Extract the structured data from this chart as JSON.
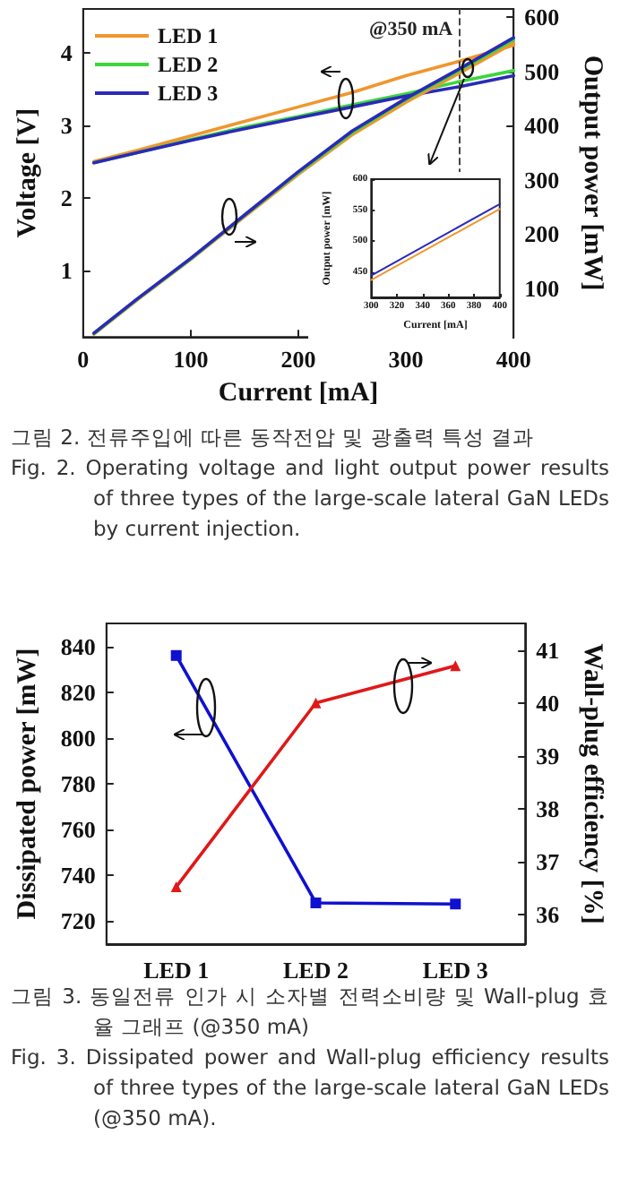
{
  "chart_data": [
    {
      "type": "line",
      "xlabel": "Current [mA]",
      "ylabel": "Voltage [V]",
      "y2label": "Output power [mW]",
      "x": [
        10,
        50,
        100,
        150,
        200,
        250,
        300,
        350,
        400
      ],
      "xlim": [
        0,
        400
      ],
      "xticks": [
        0,
        100,
        200,
        300,
        400
      ],
      "ylim": [
        0.08,
        4.6
      ],
      "yticks": [
        1,
        2,
        3,
        4
      ],
      "y2lim": [
        10,
        615
      ],
      "y2ticks": [
        100,
        200,
        300,
        400,
        500,
        600
      ],
      "grid": false,
      "legend": "top left",
      "marker": "none",
      "line_style": "solid",
      "series": [
        {
          "name": "LED 1",
          "color": "#f0962e",
          "values": [
            2.5,
            2.65,
            2.85,
            3.05,
            3.25,
            3.45,
            3.68,
            3.88,
            4.1
          ]
        },
        {
          "name": "LED 2",
          "color": "#3cd63c",
          "values": [
            2.48,
            2.62,
            2.8,
            2.97,
            3.12,
            3.28,
            3.43,
            3.6,
            3.75
          ]
        },
        {
          "name": "LED 3",
          "color": "#2a2ab8",
          "values": [
            2.48,
            2.62,
            2.79,
            2.95,
            3.1,
            3.25,
            3.4,
            3.53,
            3.68
          ]
        },
        {
          "color": "#f0962e",
          "axis": "y2",
          "values": [
            15,
            78,
            153,
            232,
            310,
            383,
            443,
            497,
            552
          ]
        },
        {
          "color": "#3cd63c",
          "axis": "y2",
          "values": [
            16,
            79,
            154,
            234,
            313,
            387,
            448,
            502,
            558
          ]
        },
        {
          "color": "#2a2ab8",
          "axis": "y2",
          "values": [
            17,
            80,
            155,
            235,
            315,
            390,
            450,
            505,
            562
          ]
        }
      ],
      "ref_lines": [
        {
          "axis": "x",
          "value": 350,
          "label": "@350 mA",
          "line_style": "dashed"
        }
      ],
      "annotations": [
        "그림 2. 전류주입에 따른 동작전압 및 광출력 특성 결과",
        "Fig. 2. Operating voltage and light output power results of three types of the large-scale lateral GaN LEDs by current injection."
      ]
    },
    {
      "type": "line",
      "xlabel": "Current [mA]",
      "ylabel": "Output power [mW]",
      "x": [
        300,
        400
      ],
      "xlim": [
        300,
        400
      ],
      "xticks": [
        300,
        320,
        340,
        360,
        380,
        400
      ],
      "ylim": [
        410,
        600
      ],
      "yticks": [
        450,
        500,
        550,
        600
      ],
      "grid": false,
      "marker": "none",
      "line_style": "solid",
      "series": [
        {
          "color": "#f0962e",
          "values": [
            438,
            552
          ]
        },
        {
          "color": "#2a2ab8",
          "values": [
            445,
            560
          ]
        }
      ]
    },
    {
      "type": "line",
      "ylabel": "Dissipated power [mW]",
      "y2label": "Wall-plug efficiency [%]",
      "categories": [
        "LED 1",
        "LED 2",
        "LED 3"
      ],
      "ylim": [
        710,
        850
      ],
      "yticks": [
        720,
        740,
        760,
        780,
        800,
        820,
        840
      ],
      "y2lim": [
        35.45,
        41.5
      ],
      "y2ticks": [
        36,
        37,
        38,
        39,
        40,
        41
      ],
      "grid": false,
      "line_style": "solid",
      "series": [
        {
          "color": "#1010d0",
          "marker": "square",
          "values": [
            836,
            728,
            727.5
          ]
        },
        {
          "color": "#e01818",
          "marker": "triangle",
          "axis": "y2",
          "values": [
            36.53,
            40.0,
            40.7
          ]
        }
      ],
      "annotations": [
        "그림 3. 동일전류 인가 시 소자별 전력소비량 및 Wall-plug 효율 그래프 (@350 mA)",
        "Fig. 3. Dissipated power and Wall-plug efficiency results of three types of the large-scale lateral GaN LEDs (@350 mA)."
      ]
    }
  ]
}
